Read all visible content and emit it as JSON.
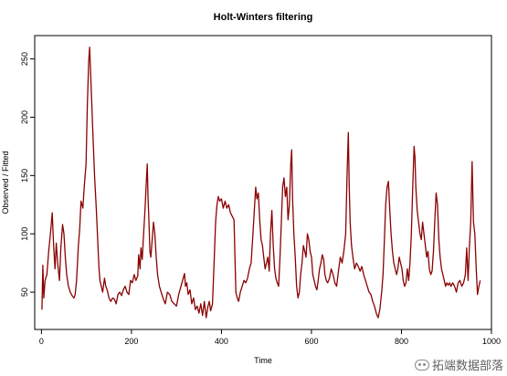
{
  "chart_data": {
    "type": "line",
    "title": "Holt-Winters filtering",
    "xlabel": "Time",
    "ylabel": "Observed / Fitted",
    "xlim": [
      -15,
      1000
    ],
    "ylim": [
      18,
      270
    ],
    "x_ticks": [
      0,
      200,
      400,
      600,
      800,
      1000
    ],
    "y_ticks": [
      50,
      100,
      150,
      200,
      250
    ],
    "grid": false,
    "legend": "none",
    "series": [
      {
        "color": "#8b0000",
        "points": [
          [
            1,
            35
          ],
          [
            3,
            73
          ],
          [
            5,
            45
          ],
          [
            8,
            60
          ],
          [
            12,
            65
          ],
          [
            16,
            85
          ],
          [
            20,
            100
          ],
          [
            24,
            118
          ],
          [
            27,
            90
          ],
          [
            30,
            70
          ],
          [
            33,
            92
          ],
          [
            36,
            75
          ],
          [
            40,
            60
          ],
          [
            43,
            88
          ],
          [
            47,
            108
          ],
          [
            50,
            100
          ],
          [
            53,
            80
          ],
          [
            56,
            65
          ],
          [
            60,
            55
          ],
          [
            64,
            50
          ],
          [
            68,
            47
          ],
          [
            72,
            45
          ],
          [
            75,
            48
          ],
          [
            78,
            60
          ],
          [
            82,
            90
          ],
          [
            85,
            105
          ],
          [
            88,
            128
          ],
          [
            92,
            122
          ],
          [
            95,
            140
          ],
          [
            99,
            160
          ],
          [
            102,
            210
          ],
          [
            105,
            248
          ],
          [
            107,
            260
          ],
          [
            110,
            230
          ],
          [
            114,
            190
          ],
          [
            118,
            150
          ],
          [
            122,
            120
          ],
          [
            126,
            85
          ],
          [
            128,
            70
          ],
          [
            130,
            60
          ],
          [
            133,
            55
          ],
          [
            136,
            50
          ],
          [
            140,
            62
          ],
          [
            143,
            55
          ],
          [
            146,
            52
          ],
          [
            150,
            45
          ],
          [
            154,
            42
          ],
          [
            158,
            45
          ],
          [
            162,
            44
          ],
          [
            166,
            40
          ],
          [
            170,
            48
          ],
          [
            174,
            50
          ],
          [
            178,
            47
          ],
          [
            182,
            52
          ],
          [
            186,
            55
          ],
          [
            190,
            50
          ],
          [
            194,
            48
          ],
          [
            198,
            60
          ],
          [
            202,
            58
          ],
          [
            206,
            65
          ],
          [
            210,
            60
          ],
          [
            214,
            64
          ],
          [
            216,
            82
          ],
          [
            219,
            70
          ],
          [
            221,
            88
          ],
          [
            224,
            78
          ],
          [
            227,
            100
          ],
          [
            230,
            120
          ],
          [
            233,
            145
          ],
          [
            235,
            160
          ],
          [
            237,
            130
          ],
          [
            239,
            110
          ],
          [
            241,
            85
          ],
          [
            243,
            80
          ],
          [
            246,
            95
          ],
          [
            249,
            110
          ],
          [
            252,
            100
          ],
          [
            255,
            80
          ],
          [
            258,
            65
          ],
          [
            262,
            55
          ],
          [
            266,
            50
          ],
          [
            270,
            45
          ],
          [
            275,
            40
          ],
          [
            280,
            50
          ],
          [
            285,
            48
          ],
          [
            290,
            42
          ],
          [
            295,
            40
          ],
          [
            300,
            38
          ],
          [
            305,
            48
          ],
          [
            310,
            55
          ],
          [
            315,
            62
          ],
          [
            318,
            66
          ],
          [
            320,
            55
          ],
          [
            323,
            58
          ],
          [
            326,
            48
          ],
          [
            330,
            52
          ],
          [
            334,
            40
          ],
          [
            338,
            45
          ],
          [
            342,
            35
          ],
          [
            346,
            38
          ],
          [
            350,
            32
          ],
          [
            354,
            40
          ],
          [
            358,
            30
          ],
          [
            362,
            42
          ],
          [
            366,
            28
          ],
          [
            370,
            38
          ],
          [
            373,
            42
          ],
          [
            376,
            34
          ],
          [
            380,
            40
          ],
          [
            384,
            80
          ],
          [
            387,
            110
          ],
          [
            390,
            125
          ],
          [
            393,
            132
          ],
          [
            396,
            128
          ],
          [
            400,
            130
          ],
          [
            404,
            122
          ],
          [
            408,
            128
          ],
          [
            412,
            122
          ],
          [
            416,
            125
          ],
          [
            420,
            118
          ],
          [
            424,
            115
          ],
          [
            428,
            112
          ],
          [
            430,
            80
          ],
          [
            432,
            50
          ],
          [
            435,
            45
          ],
          [
            438,
            42
          ],
          [
            442,
            50
          ],
          [
            446,
            55
          ],
          [
            450,
            60
          ],
          [
            454,
            58
          ],
          [
            458,
            62
          ],
          [
            462,
            70
          ],
          [
            466,
            75
          ],
          [
            470,
            100
          ],
          [
            473,
            120
          ],
          [
            476,
            140
          ],
          [
            479,
            130
          ],
          [
            482,
            135
          ],
          [
            485,
            112
          ],
          [
            488,
            95
          ],
          [
            491,
            90
          ],
          [
            494,
            80
          ],
          [
            497,
            70
          ],
          [
            500,
            75
          ],
          [
            503,
            80
          ],
          [
            506,
            68
          ],
          [
            509,
            100
          ],
          [
            512,
            120
          ],
          [
            515,
            90
          ],
          [
            518,
            70
          ],
          [
            521,
            62
          ],
          [
            524,
            58
          ],
          [
            527,
            55
          ],
          [
            530,
            80
          ],
          [
            533,
            110
          ],
          [
            536,
            140
          ],
          [
            539,
            148
          ],
          [
            542,
            132
          ],
          [
            545,
            140
          ],
          [
            548,
            112
          ],
          [
            551,
            125
          ],
          [
            554,
            160
          ],
          [
            556,
            172
          ],
          [
            558,
            130
          ],
          [
            561,
            100
          ],
          [
            564,
            80
          ],
          [
            567,
            55
          ],
          [
            570,
            45
          ],
          [
            573,
            50
          ],
          [
            576,
            65
          ],
          [
            579,
            75
          ],
          [
            582,
            90
          ],
          [
            585,
            85
          ],
          [
            588,
            80
          ],
          [
            591,
            100
          ],
          [
            594,
            95
          ],
          [
            597,
            85
          ],
          [
            600,
            80
          ],
          [
            603,
            65
          ],
          [
            606,
            60
          ],
          [
            609,
            55
          ],
          [
            612,
            52
          ],
          [
            615,
            60
          ],
          [
            618,
            70
          ],
          [
            621,
            75
          ],
          [
            624,
            82
          ],
          [
            627,
            78
          ],
          [
            630,
            65
          ],
          [
            633,
            60
          ],
          [
            636,
            58
          ],
          [
            640,
            62
          ],
          [
            644,
            70
          ],
          [
            648,
            65
          ],
          [
            652,
            58
          ],
          [
            656,
            55
          ],
          [
            660,
            68
          ],
          [
            664,
            80
          ],
          [
            668,
            75
          ],
          [
            672,
            85
          ],
          [
            676,
            100
          ],
          [
            679,
            150
          ],
          [
            682,
            187
          ],
          [
            684,
            140
          ],
          [
            686,
            110
          ],
          [
            689,
            90
          ],
          [
            692,
            80
          ],
          [
            696,
            70
          ],
          [
            700,
            75
          ],
          [
            704,
            72
          ],
          [
            708,
            68
          ],
          [
            712,
            72
          ],
          [
            716,
            65
          ],
          [
            720,
            60
          ],
          [
            724,
            55
          ],
          [
            728,
            50
          ],
          [
            732,
            48
          ],
          [
            736,
            42
          ],
          [
            740,
            38
          ],
          [
            744,
            32
          ],
          [
            748,
            28
          ],
          [
            752,
            35
          ],
          [
            756,
            50
          ],
          [
            759,
            65
          ],
          [
            762,
            95
          ],
          [
            765,
            125
          ],
          [
            768,
            140
          ],
          [
            771,
            145
          ],
          [
            774,
            120
          ],
          [
            777,
            100
          ],
          [
            780,
            85
          ],
          [
            783,
            75
          ],
          [
            786,
            70
          ],
          [
            789,
            65
          ],
          [
            792,
            70
          ],
          [
            795,
            80
          ],
          [
            798,
            75
          ],
          [
            801,
            70
          ],
          [
            804,
            60
          ],
          [
            807,
            55
          ],
          [
            810,
            58
          ],
          [
            813,
            70
          ],
          [
            816,
            60
          ],
          [
            819,
            75
          ],
          [
            822,
            100
          ],
          [
            825,
            140
          ],
          [
            828,
            175
          ],
          [
            830,
            165
          ],
          [
            832,
            140
          ],
          [
            835,
            120
          ],
          [
            838,
            110
          ],
          [
            841,
            100
          ],
          [
            844,
            95
          ],
          [
            847,
            110
          ],
          [
            850,
            100
          ],
          [
            853,
            90
          ],
          [
            856,
            80
          ],
          [
            859,
            85
          ],
          [
            862,
            70
          ],
          [
            865,
            65
          ],
          [
            868,
            68
          ],
          [
            871,
            85
          ],
          [
            874,
            110
          ],
          [
            877,
            135
          ],
          [
            880,
            125
          ],
          [
            883,
            95
          ],
          [
            886,
            80
          ],
          [
            889,
            70
          ],
          [
            892,
            65
          ],
          [
            895,
            60
          ],
          [
            898,
            55
          ],
          [
            901,
            58
          ],
          [
            904,
            56
          ],
          [
            907,
            58
          ],
          [
            910,
            55
          ],
          [
            914,
            58
          ],
          [
            918,
            55
          ],
          [
            922,
            50
          ],
          [
            926,
            58
          ],
          [
            930,
            60
          ],
          [
            934,
            55
          ],
          [
            938,
            58
          ],
          [
            942,
            65
          ],
          [
            945,
            88
          ],
          [
            948,
            60
          ],
          [
            951,
            90
          ],
          [
            954,
            110
          ],
          [
            957,
            162
          ],
          [
            960,
            110
          ],
          [
            963,
            100
          ],
          [
            966,
            70
          ],
          [
            969,
            48
          ],
          [
            972,
            55
          ],
          [
            975,
            60
          ]
        ]
      }
    ]
  },
  "watermark": {
    "text": "拓端数据部落"
  }
}
